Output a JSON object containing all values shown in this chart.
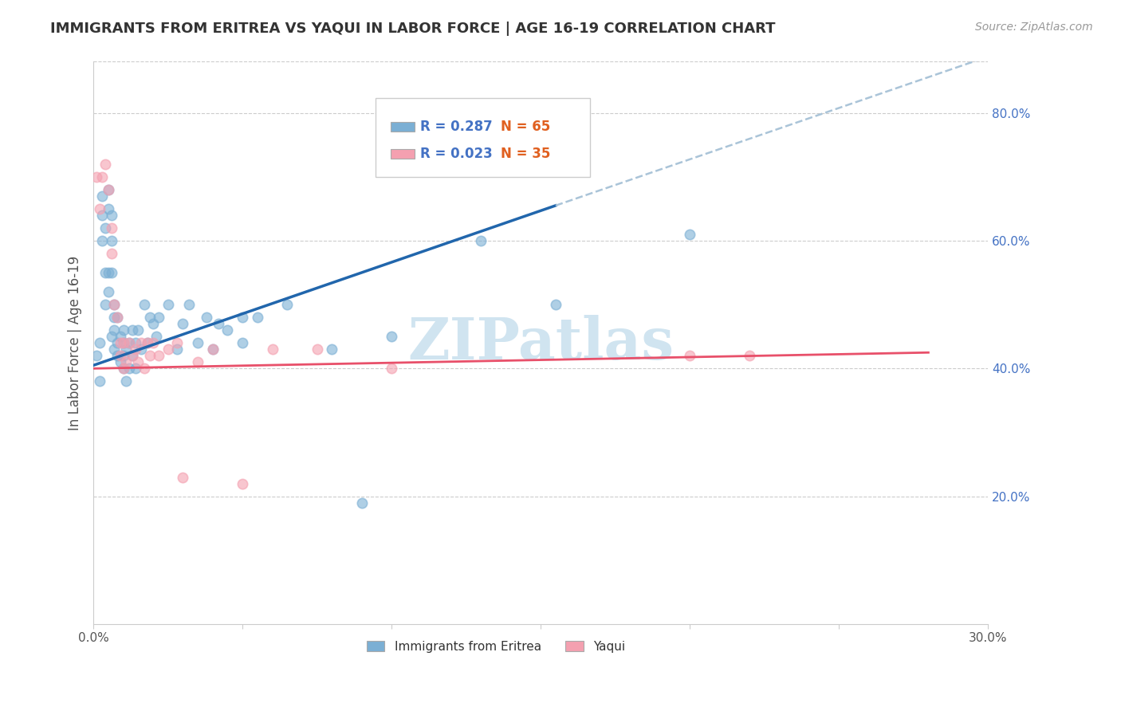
{
  "title": "IMMIGRANTS FROM ERITREA VS YAQUI IN LABOR FORCE | AGE 16-19 CORRELATION CHART",
  "source": "Source: ZipAtlas.com",
  "ylabel": "In Labor Force | Age 16-19",
  "xlim": [
    0.0,
    0.3
  ],
  "ylim": [
    0.0,
    0.88
  ],
  "blue_color": "#7bafd4",
  "pink_color": "#f4a0b0",
  "blue_line_color": "#2166ac",
  "pink_line_color": "#e8506a",
  "dash_color": "#aac4d8",
  "watermark_text": "ZIPatlas",
  "watermark_color": "#d0e4f0",
  "legend_R1": "R = 0.287",
  "legend_N1": "N = 65",
  "legend_R2": "R = 0.023",
  "legend_N2": "N = 35",
  "legend_R_color": "#4472c4",
  "legend_N_color": "#e06020",
  "blue_line_x0": 0.0,
  "blue_line_y0": 0.405,
  "blue_line_x1": 0.155,
  "blue_line_y1": 0.655,
  "dash_line_x0": 0.155,
  "dash_line_y0": 0.655,
  "dash_line_x1": 0.3,
  "dash_line_y1": 0.888,
  "pink_line_x0": 0.0,
  "pink_line_y0": 0.4,
  "pink_line_x1": 0.28,
  "pink_line_y1": 0.425,
  "eritrea_x": [
    0.001,
    0.002,
    0.002,
    0.003,
    0.003,
    0.003,
    0.004,
    0.004,
    0.004,
    0.005,
    0.005,
    0.005,
    0.005,
    0.006,
    0.006,
    0.006,
    0.006,
    0.007,
    0.007,
    0.007,
    0.007,
    0.008,
    0.008,
    0.008,
    0.009,
    0.009,
    0.01,
    0.01,
    0.01,
    0.01,
    0.011,
    0.011,
    0.012,
    0.012,
    0.013,
    0.013,
    0.014,
    0.014,
    0.015,
    0.016,
    0.017,
    0.018,
    0.019,
    0.02,
    0.021,
    0.022,
    0.025,
    0.028,
    0.03,
    0.032,
    0.035,
    0.038,
    0.04,
    0.042,
    0.045,
    0.05,
    0.055,
    0.065,
    0.08,
    0.09,
    0.1,
    0.13,
    0.155,
    0.2,
    0.05
  ],
  "eritrea_y": [
    0.42,
    0.38,
    0.44,
    0.67,
    0.64,
    0.6,
    0.62,
    0.55,
    0.5,
    0.68,
    0.65,
    0.55,
    0.52,
    0.64,
    0.6,
    0.55,
    0.45,
    0.5,
    0.46,
    0.43,
    0.48,
    0.44,
    0.42,
    0.48,
    0.45,
    0.41,
    0.42,
    0.44,
    0.4,
    0.46,
    0.43,
    0.38,
    0.44,
    0.4,
    0.42,
    0.46,
    0.44,
    0.4,
    0.46,
    0.43,
    0.5,
    0.44,
    0.48,
    0.47,
    0.45,
    0.48,
    0.5,
    0.43,
    0.47,
    0.5,
    0.44,
    0.48,
    0.43,
    0.47,
    0.46,
    0.44,
    0.48,
    0.5,
    0.43,
    0.19,
    0.45,
    0.6,
    0.5,
    0.61,
    0.48
  ],
  "yaqui_x": [
    0.001,
    0.002,
    0.003,
    0.004,
    0.005,
    0.006,
    0.006,
    0.007,
    0.008,
    0.009,
    0.009,
    0.01,
    0.01,
    0.011,
    0.012,
    0.013,
    0.014,
    0.015,
    0.016,
    0.017,
    0.018,
    0.019,
    0.02,
    0.022,
    0.025,
    0.028,
    0.03,
    0.035,
    0.04,
    0.05,
    0.06,
    0.075,
    0.1,
    0.2,
    0.22
  ],
  "yaqui_y": [
    0.7,
    0.65,
    0.7,
    0.72,
    0.68,
    0.62,
    0.58,
    0.5,
    0.48,
    0.44,
    0.42,
    0.44,
    0.4,
    0.41,
    0.44,
    0.42,
    0.43,
    0.41,
    0.44,
    0.4,
    0.44,
    0.42,
    0.44,
    0.42,
    0.43,
    0.44,
    0.23,
    0.41,
    0.43,
    0.22,
    0.43,
    0.43,
    0.4,
    0.42,
    0.42
  ]
}
